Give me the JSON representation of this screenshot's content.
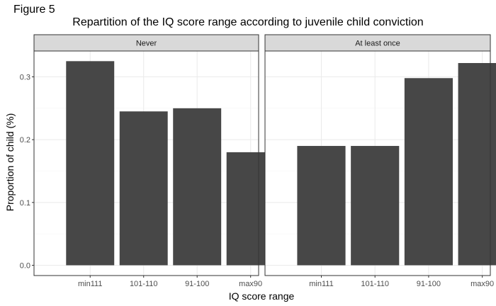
{
  "figure_label": "Figure 5",
  "chart_data": {
    "type": "bar",
    "title": "Repartition of the IQ score range according to juvenile child conviction",
    "xlabel": "IQ score range",
    "ylabel": "Proportion of child (%)",
    "categories": [
      "min111",
      "101-110",
      "91-100",
      "max90"
    ],
    "panels": [
      {
        "name": "Never",
        "values": [
          0.325,
          0.245,
          0.25,
          0.18
        ]
      },
      {
        "name": "At least once",
        "values": [
          0.19,
          0.19,
          0.298,
          0.322
        ]
      }
    ],
    "ylim": [
      0,
      0.34
    ],
    "yticks": [
      "0.0",
      "0.1",
      "0.2",
      "0.3"
    ],
    "grid": true,
    "colors": {
      "bar": "#474747",
      "strip_fill": "#d9d9d9",
      "panel_border": "#333333",
      "grid_major": "#ebebeb",
      "grid_minor": "#f5f5f5"
    }
  }
}
